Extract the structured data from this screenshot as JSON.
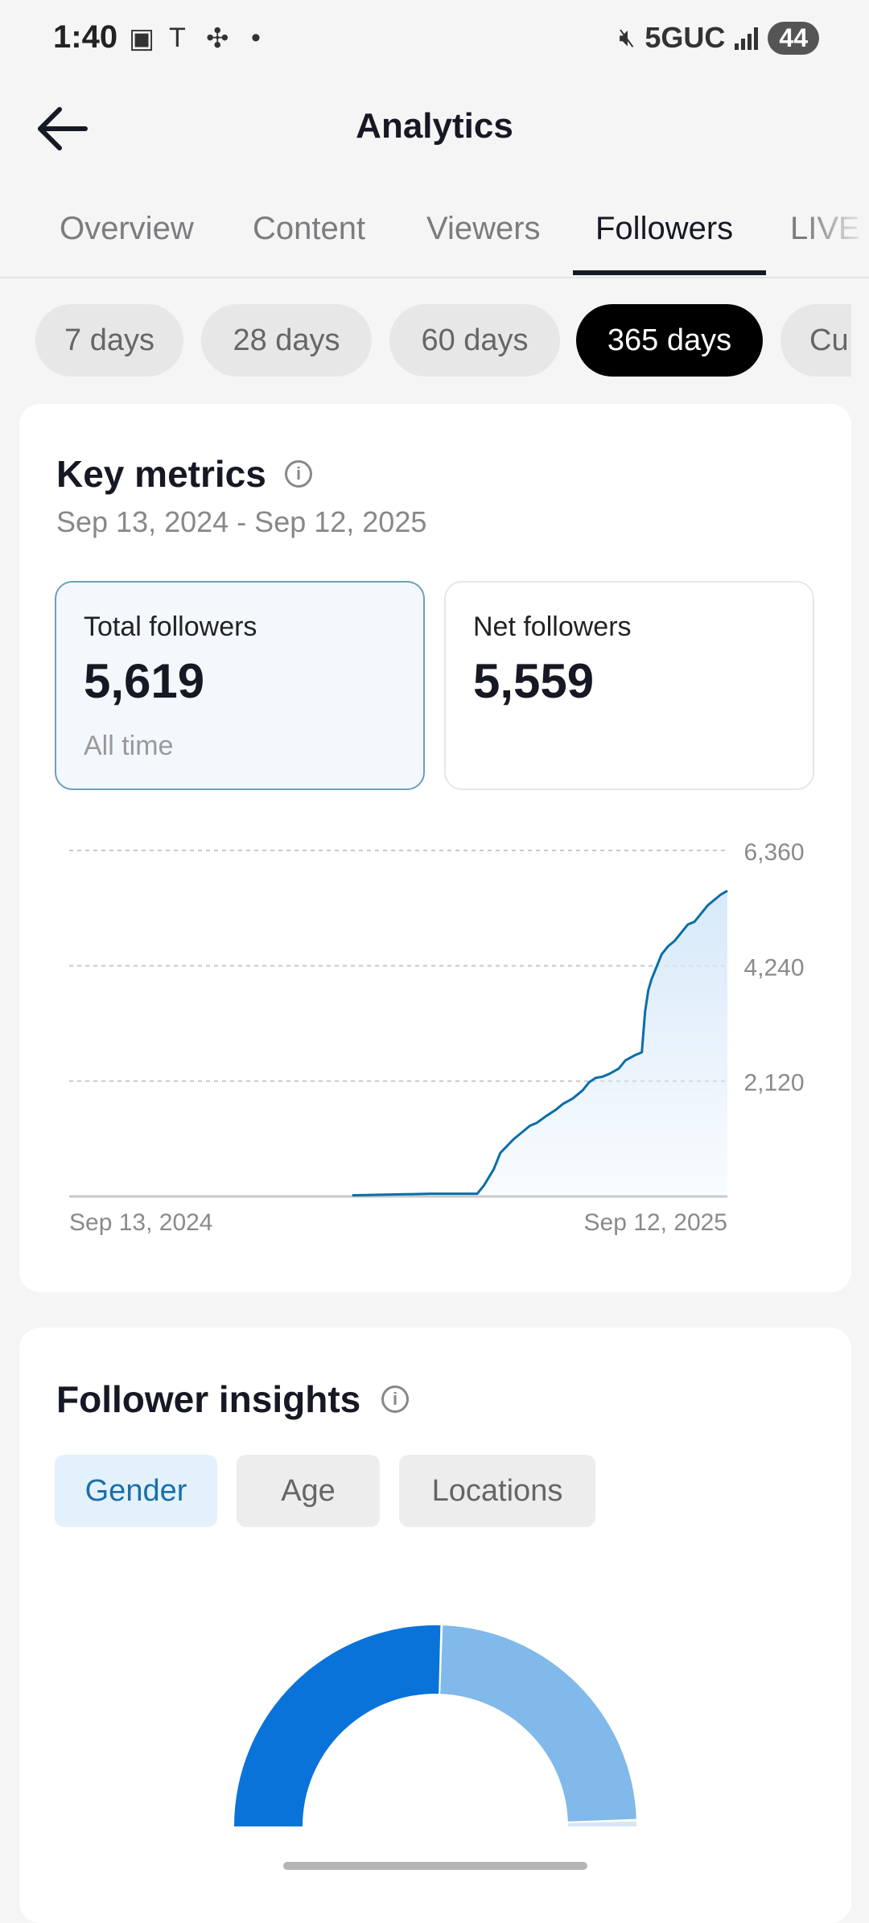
{
  "status_bar": {
    "time": "1:40",
    "network": "5GUC",
    "battery": "44"
  },
  "header": {
    "title": "Analytics"
  },
  "tabs": [
    {
      "label": "Overview",
      "active": false
    },
    {
      "label": "Content",
      "active": false
    },
    {
      "label": "Viewers",
      "active": false
    },
    {
      "label": "Followers",
      "active": true
    },
    {
      "label": "LIVE",
      "active": false
    }
  ],
  "ranges": [
    {
      "label": "7 days",
      "active": false
    },
    {
      "label": "28 days",
      "active": false
    },
    {
      "label": "60 days",
      "active": false
    },
    {
      "label": "365 days",
      "active": true
    },
    {
      "label": "Cu",
      "active": false
    }
  ],
  "key_metrics": {
    "title": "Key metrics",
    "date_range": "Sep 13, 2024 - Sep 12, 2025",
    "total": {
      "label": "Total followers",
      "value": "5,619",
      "sub": "All time"
    },
    "net": {
      "label": "Net followers",
      "value": "5,559"
    }
  },
  "chart_data": {
    "type": "area",
    "x_labels": [
      "Sep 13, 2024",
      "Sep 12, 2025"
    ],
    "y_ticks": [
      2120,
      4240,
      6360
    ],
    "y_tick_labels": [
      "2,120",
      "4,240",
      "6,360"
    ],
    "ylim": [
      0,
      6360
    ],
    "grid": true,
    "accent": "#0a6ea8",
    "fill": "#d7e9f9",
    "series": [
      {
        "x": [
          0.0,
          0.43,
          0.55,
          0.62,
          0.63,
          0.645,
          0.655,
          0.675,
          0.69,
          0.7,
          0.71,
          0.725,
          0.74,
          0.75,
          0.765,
          0.78,
          0.79,
          0.8,
          0.81,
          0.82,
          0.835,
          0.845,
          0.86,
          0.87,
          0.875,
          0.88,
          0.885,
          0.89,
          0.895,
          0.9,
          0.91,
          0.92,
          0.93,
          0.94,
          0.95,
          0.96,
          0.97,
          0.98,
          0.99,
          1.0
        ],
        "values": [
          0,
          20,
          50,
          50,
          200,
          500,
          800,
          1050,
          1200,
          1300,
          1350,
          1480,
          1600,
          1700,
          1800,
          1950,
          2100,
          2180,
          2200,
          2250,
          2350,
          2500,
          2600,
          2650,
          3400,
          3800,
          4000,
          4150,
          4300,
          4450,
          4600,
          4700,
          4850,
          5000,
          5050,
          5200,
          5350,
          5450,
          5550,
          5619
        ]
      }
    ]
  },
  "insights": {
    "title": "Follower insights",
    "tabs": [
      {
        "label": "Gender",
        "active": true
      },
      {
        "label": "Age",
        "active": false
      },
      {
        "label": "Locations",
        "active": false
      }
    ],
    "gauge": {
      "segments": [
        {
          "share": 0.51,
          "color": "#0a73da"
        },
        {
          "share": 0.48,
          "color": "#80b9ea"
        },
        {
          "share": 0.01,
          "color": "#d6e6f5"
        }
      ]
    }
  }
}
